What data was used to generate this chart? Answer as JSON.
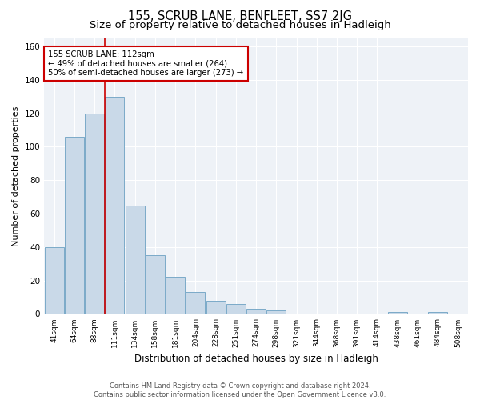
{
  "title": "155, SCRUB LANE, BENFLEET, SS7 2JG",
  "subtitle": "Size of property relative to detached houses in Hadleigh",
  "xlabel": "Distribution of detached houses by size in Hadleigh",
  "ylabel": "Number of detached properties",
  "bar_labels": [
    "41sqm",
    "64sqm",
    "88sqm",
    "111sqm",
    "134sqm",
    "158sqm",
    "181sqm",
    "204sqm",
    "228sqm",
    "251sqm",
    "274sqm",
    "298sqm",
    "321sqm",
    "344sqm",
    "368sqm",
    "391sqm",
    "414sqm",
    "438sqm",
    "461sqm",
    "484sqm",
    "508sqm"
  ],
  "bar_values": [
    40,
    106,
    120,
    130,
    65,
    35,
    22,
    13,
    8,
    6,
    3,
    2,
    0,
    0,
    0,
    0,
    0,
    1,
    0,
    1,
    0
  ],
  "bar_color": "#c9d9e8",
  "bar_edge_color": "#7aaac8",
  "highlight_bar_index": 3,
  "highlight_line_color": "#cc0000",
  "annotation_text": "155 SCRUB LANE: 112sqm\n← 49% of detached houses are smaller (264)\n50% of semi-detached houses are larger (273) →",
  "annotation_box_color": "#ffffff",
  "annotation_box_edge_color": "#cc0000",
  "ylim": [
    0,
    165
  ],
  "yticks": [
    0,
    20,
    40,
    60,
    80,
    100,
    120,
    140,
    160
  ],
  "background_color": "#eef2f7",
  "footer_line1": "Contains HM Land Registry data © Crown copyright and database right 2024.",
  "footer_line2": "Contains public sector information licensed under the Open Government Licence v3.0.",
  "title_fontsize": 10.5,
  "subtitle_fontsize": 9.5,
  "xlabel_fontsize": 8.5,
  "ylabel_fontsize": 8.0
}
